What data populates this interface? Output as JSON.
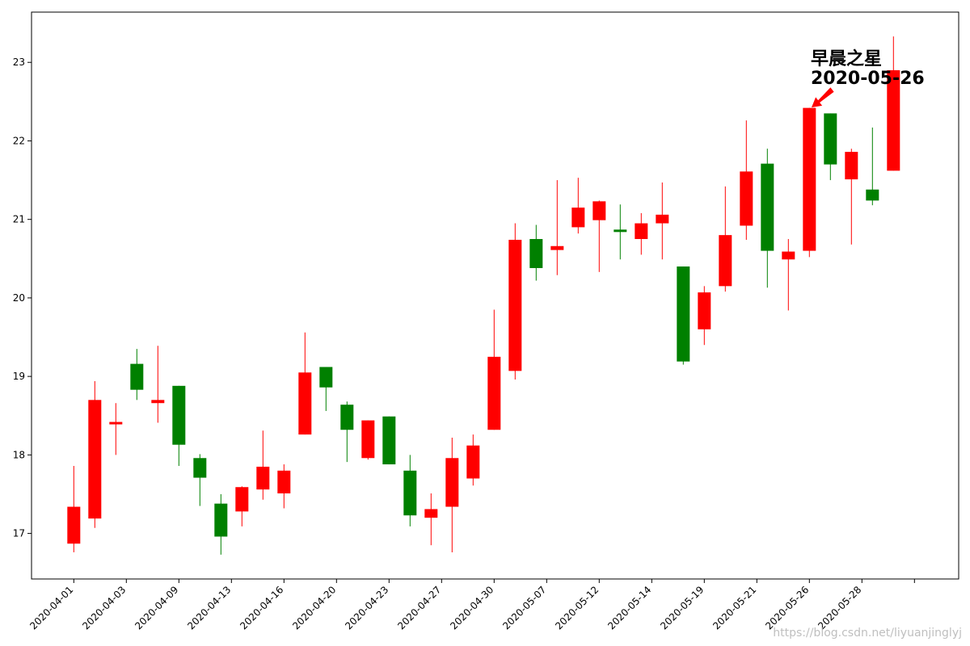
{
  "chart_data": {
    "type": "candlestick",
    "title": "",
    "xlabel": "",
    "ylabel": "",
    "ylim": [
      16.42,
      23.64
    ],
    "y_ticks": [
      17,
      18,
      19,
      20,
      21,
      22,
      23
    ],
    "x_tick_labels": [
      "2020-04-01",
      "2020-04-03",
      "2020-04-09",
      "2020-04-13",
      "2020-04-16",
      "2020-04-20",
      "2020-04-23",
      "2020-04-27",
      "2020-04-30",
      "2020-05-07",
      "2020-05-12",
      "2020-05-14",
      "2020-05-19",
      "2020-05-21",
      "2020-05-26",
      "2020-05-28",
      ""
    ],
    "colors": {
      "up": "#ff0000",
      "down": "#008000",
      "arrow": "#ff0000"
    },
    "candles": [
      {
        "open": 16.87,
        "close": 17.34,
        "high": 17.86,
        "low": 16.76
      },
      {
        "open": 17.19,
        "close": 18.7,
        "high": 18.94,
        "low": 17.07
      },
      {
        "open": 18.4,
        "close": 18.42,
        "high": 18.66,
        "low": 18.0
      },
      {
        "open": 19.16,
        "close": 18.83,
        "high": 19.35,
        "low": 18.7
      },
      {
        "open": 18.66,
        "close": 18.7,
        "high": 19.39,
        "low": 18.41
      },
      {
        "open": 18.88,
        "close": 18.13,
        "high": 18.88,
        "low": 17.86
      },
      {
        "open": 17.96,
        "close": 17.71,
        "high": 18.01,
        "low": 17.35
      },
      {
        "open": 17.38,
        "close": 16.96,
        "high": 17.5,
        "low": 16.73
      },
      {
        "open": 17.28,
        "close": 17.59,
        "high": 17.6,
        "low": 17.09
      },
      {
        "open": 17.56,
        "close": 17.85,
        "high": 18.31,
        "low": 17.43
      },
      {
        "open": 17.51,
        "close": 17.8,
        "high": 17.88,
        "low": 17.32
      },
      {
        "open": 18.26,
        "close": 19.05,
        "high": 19.56,
        "low": 18.26
      },
      {
        "open": 19.12,
        "close": 18.86,
        "high": 19.12,
        "low": 18.56
      },
      {
        "open": 18.64,
        "close": 18.32,
        "high": 18.68,
        "low": 17.91
      },
      {
        "open": 17.96,
        "close": 18.44,
        "high": 18.44,
        "low": 17.94
      },
      {
        "open": 18.49,
        "close": 17.88,
        "high": 18.49,
        "low": 17.88
      },
      {
        "open": 17.8,
        "close": 17.23,
        "high": 18.0,
        "low": 17.09
      },
      {
        "open": 17.2,
        "close": 17.31,
        "high": 17.51,
        "low": 16.85
      },
      {
        "open": 17.34,
        "close": 17.96,
        "high": 18.22,
        "low": 16.76
      },
      {
        "open": 17.7,
        "close": 18.12,
        "high": 18.26,
        "low": 17.61
      },
      {
        "open": 18.32,
        "close": 19.25,
        "high": 19.85,
        "low": 18.32
      },
      {
        "open": 19.07,
        "close": 20.74,
        "high": 20.95,
        "low": 18.96
      },
      {
        "open": 20.75,
        "close": 20.38,
        "high": 20.93,
        "low": 20.22
      },
      {
        "open": 20.61,
        "close": 20.66,
        "high": 21.5,
        "low": 20.29
      },
      {
        "open": 20.9,
        "close": 21.15,
        "high": 21.53,
        "low": 20.82
      },
      {
        "open": 20.99,
        "close": 21.23,
        "high": 21.24,
        "low": 20.33
      },
      {
        "open": 20.87,
        "close": 20.84,
        "high": 21.19,
        "low": 20.49
      },
      {
        "open": 20.75,
        "close": 20.95,
        "high": 21.08,
        "low": 20.55
      },
      {
        "open": 20.95,
        "close": 21.06,
        "high": 21.47,
        "low": 20.49
      },
      {
        "open": 20.4,
        "close": 19.19,
        "high": 20.4,
        "low": 19.15
      },
      {
        "open": 19.6,
        "close": 20.07,
        "high": 20.15,
        "low": 19.4
      },
      {
        "open": 20.15,
        "close": 20.8,
        "high": 21.42,
        "low": 20.08
      },
      {
        "open": 20.92,
        "close": 21.61,
        "high": 22.26,
        "low": 20.74
      },
      {
        "open": 21.71,
        "close": 20.6,
        "high": 21.9,
        "low": 20.13
      },
      {
        "open": 20.49,
        "close": 20.59,
        "high": 20.75,
        "low": 19.84
      },
      {
        "open": 20.6,
        "close": 22.42,
        "high": 22.42,
        "low": 20.52
      },
      {
        "open": 22.35,
        "close": 21.7,
        "high": 22.35,
        "low": 21.5
      },
      {
        "open": 21.51,
        "close": 21.86,
        "high": 21.9,
        "low": 20.68
      },
      {
        "open": 21.38,
        "close": 21.24,
        "high": 22.17,
        "low": 21.18
      },
      {
        "open": 21.62,
        "close": 22.9,
        "high": 23.33,
        "low": 21.62
      }
    ],
    "annotation": {
      "line1": "早晨之星",
      "line2": "2020-05-26",
      "candle_index": 35
    }
  },
  "watermark": "https://blog.csdn.net/liyuanjinglyj"
}
